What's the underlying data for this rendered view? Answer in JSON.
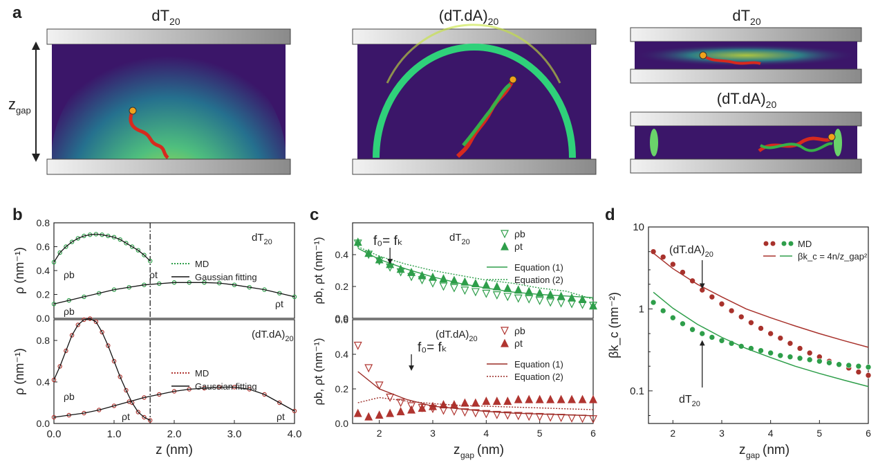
{
  "panel_letters": {
    "a": "a",
    "b": "b",
    "c": "c",
    "d": "d"
  },
  "panel_a": {
    "sim1_title": "dT",
    "sim1_sub": "20",
    "sim2_title": "(dT.dA)",
    "sim2_sub": "20",
    "sim3_title": "dT",
    "sim3_sub": "20",
    "sim4_title": "(dT.dA)",
    "sim4_sub": "20",
    "gap_label": "z",
    "gap_sub": "gap",
    "colors": {
      "plate_light": "#f0f0f0",
      "plate_dark": "#8a8a8a",
      "bg": "#3b1669",
      "ring": "#2fd17a",
      "hot": "#f4ea3a",
      "strand_red": "#d62a1e",
      "strand_green": "#36b049",
      "tether": "#f0a21a"
    }
  },
  "chart_data": [
    {
      "id": "b_top",
      "type": "line",
      "xlim": [
        0,
        4.0
      ],
      "ylim": [
        0,
        0.8
      ],
      "yticks": [
        "0.0",
        "0.2",
        "0.4",
        "0.6",
        "0.8"
      ],
      "ylabel": "ρ (nm⁻¹)",
      "label_main": "dT",
      "label_sub": "20",
      "legend": [
        "MD",
        "Gaussian fitting"
      ],
      "divider_x": 1.6,
      "annotations": [
        "ρb",
        "ρt",
        "ρb",
        "ρt"
      ],
      "series": [
        {
          "name": "MD (z_gap = 1.6 nm)",
          "color": "#2e9e4a",
          "x": [
            0,
            0.1,
            0.2,
            0.3,
            0.4,
            0.5,
            0.6,
            0.7,
            0.8,
            0.9,
            1.0,
            1.1,
            1.2,
            1.3,
            1.4,
            1.5,
            1.6
          ],
          "y": [
            0.47,
            0.55,
            0.6,
            0.64,
            0.67,
            0.69,
            0.7,
            0.705,
            0.7,
            0.69,
            0.68,
            0.66,
            0.63,
            0.6,
            0.57,
            0.53,
            0.48
          ]
        },
        {
          "name": "MD (z_gap = 4.0 nm)",
          "color": "#2e9e4a",
          "x": [
            0,
            0.25,
            0.5,
            0.75,
            1.0,
            1.25,
            1.5,
            1.75,
            2.0,
            2.25,
            2.5,
            2.75,
            3.0,
            3.25,
            3.5,
            3.75,
            4.0
          ],
          "y": [
            0.12,
            0.15,
            0.18,
            0.21,
            0.24,
            0.26,
            0.28,
            0.29,
            0.3,
            0.3,
            0.3,
            0.295,
            0.28,
            0.26,
            0.24,
            0.21,
            0.18
          ]
        }
      ]
    },
    {
      "id": "b_bottom",
      "type": "line",
      "xlim": [
        0,
        4.0
      ],
      "ylim": [
        0,
        1.0
      ],
      "yticks": [
        "0.0",
        "0.4",
        "0.8"
      ],
      "xticks": [
        "0.0",
        "1.0",
        "2.0",
        "3.0",
        "4.0"
      ],
      "xlabel": "z (nm)",
      "ylabel": "ρ (nm⁻¹)",
      "label_main": "(dT.dA)",
      "label_sub": "20",
      "legend": [
        "MD",
        "Gaussian fitting"
      ],
      "divider_x": 1.6,
      "annotations": [
        "ρb",
        "ρt",
        "ρt"
      ],
      "series": [
        {
          "name": "MD (z_gap = 1.6 nm)",
          "color": "#b03530",
          "x": [
            0,
            0.1,
            0.2,
            0.3,
            0.4,
            0.5,
            0.6,
            0.7,
            0.8,
            0.9,
            1.0,
            1.1,
            1.2,
            1.3,
            1.4,
            1.5,
            1.6
          ],
          "y": [
            0.42,
            0.55,
            0.7,
            0.85,
            0.95,
            1.0,
            1.01,
            0.98,
            0.88,
            0.75,
            0.6,
            0.45,
            0.32,
            0.2,
            0.11,
            0.06,
            0.03
          ]
        },
        {
          "name": "MD (z_gap = 4.0 nm)",
          "color": "#b03530",
          "x": [
            0,
            0.25,
            0.5,
            0.75,
            1.0,
            1.25,
            1.5,
            1.75,
            2.0,
            2.25,
            2.5,
            2.75,
            3.0,
            3.25,
            3.5,
            3.75,
            4.0
          ],
          "y": [
            0.06,
            0.08,
            0.1,
            0.13,
            0.17,
            0.21,
            0.25,
            0.28,
            0.31,
            0.33,
            0.34,
            0.35,
            0.35,
            0.33,
            0.28,
            0.2,
            0.12
          ]
        }
      ]
    },
    {
      "id": "c_top",
      "type": "scatter",
      "xlim": [
        1.5,
        6
      ],
      "ylim": [
        0,
        0.6
      ],
      "yticks": [
        "0.0",
        "0.2",
        "0.4"
      ],
      "ylabel": "ρb, ρt (nm⁻¹)",
      "label_main": "dT",
      "label_sub": "20",
      "marker_text": "f₀= fₖ",
      "legend": [
        "ρb",
        "ρt",
        "Equation (1)",
        "Equation (2)"
      ],
      "series": [
        {
          "name": "ρb",
          "marker": "triangle-down",
          "color": "#2e9e4a",
          "x": [
            1.6,
            1.8,
            2.0,
            2.2,
            2.4,
            2.6,
            2.8,
            3.0,
            3.2,
            3.4,
            3.6,
            3.8,
            4.0,
            4.2,
            4.4,
            4.6,
            4.8,
            5.0,
            5.2,
            5.4,
            5.6,
            5.8,
            6.0
          ],
          "y": [
            0.47,
            0.4,
            0.36,
            0.32,
            0.29,
            0.26,
            0.24,
            0.22,
            0.2,
            0.19,
            0.175,
            0.165,
            0.155,
            0.145,
            0.135,
            0.125,
            0.12,
            0.11,
            0.1,
            0.095,
            0.09,
            0.085,
            0.08
          ]
        },
        {
          "name": "ρt",
          "marker": "triangle-up",
          "color": "#2e9e4a",
          "x": [
            1.6,
            1.8,
            2.0,
            2.2,
            2.4,
            2.6,
            2.8,
            3.0,
            3.2,
            3.4,
            3.6,
            3.8,
            4.0,
            4.2,
            4.4,
            4.6,
            4.8,
            5.0,
            5.2,
            5.4,
            5.6,
            5.8,
            6.0
          ],
          "y": [
            0.48,
            0.41,
            0.37,
            0.34,
            0.31,
            0.29,
            0.27,
            0.26,
            0.25,
            0.24,
            0.23,
            0.22,
            0.21,
            0.2,
            0.19,
            0.18,
            0.17,
            0.16,
            0.15,
            0.14,
            0.13,
            0.12,
            0.08
          ]
        },
        {
          "name": "Equation (1)",
          "line": "solid",
          "color": "#2e9e4a",
          "x": [
            1.6,
            2,
            2.5,
            3,
            3.5,
            4,
            4.5,
            5,
            5.5,
            6
          ],
          "y": [
            0.44,
            0.37,
            0.31,
            0.26,
            0.22,
            0.19,
            0.165,
            0.15,
            0.14,
            0.13
          ]
        },
        {
          "name": "Equation (2)",
          "line": "dotted",
          "color": "#2e9e4a",
          "x": [
            1.6,
            2,
            2.5,
            3,
            3.5,
            4,
            4.5,
            5,
            5.5,
            6
          ],
          "y": [
            0.45,
            0.39,
            0.34,
            0.3,
            0.27,
            0.24,
            0.22,
            0.19,
            0.17,
            0.12
          ]
        }
      ]
    },
    {
      "id": "c_bottom",
      "type": "scatter",
      "xlim": [
        1.5,
        6
      ],
      "ylim": [
        0,
        0.6
      ],
      "yticks": [
        "0.0",
        "0.2",
        "0.4",
        "0.6"
      ],
      "xticks": [
        "2",
        "3",
        "4",
        "5",
        "6"
      ],
      "xlabel": "z_gap (nm)",
      "ylabel": "ρb, ρt (nm⁻¹)",
      "label_main": "(dT.dA)",
      "label_sub": "20",
      "marker_text": "f₀= fₖ",
      "legend": [
        "ρb",
        "ρt",
        "Equation (1)",
        "Equation (2)"
      ],
      "series": [
        {
          "name": "ρb",
          "marker": "triangle-down",
          "color": "#b03530",
          "x": [
            1.6,
            1.8,
            2.0,
            2.2,
            2.4,
            2.6,
            2.8,
            3.0,
            3.2,
            3.4,
            3.6,
            3.8,
            4.0,
            4.2,
            4.4,
            4.6,
            4.8,
            5.0,
            5.2,
            5.4,
            5.6,
            5.8,
            6.0
          ],
          "y": [
            0.45,
            0.32,
            0.22,
            0.15,
            0.12,
            0.1,
            0.09,
            0.085,
            0.075,
            0.07,
            0.065,
            0.06,
            0.055,
            0.05,
            0.047,
            0.044,
            0.04,
            0.038,
            0.035,
            0.033,
            0.03,
            0.028,
            0.025
          ]
        },
        {
          "name": "ρt",
          "marker": "triangle-up",
          "color": "#b03530",
          "x": [
            1.6,
            1.8,
            2.0,
            2.2,
            2.4,
            2.6,
            2.8,
            3.0,
            3.2,
            3.4,
            3.6,
            3.8,
            4.0,
            4.2,
            4.4,
            4.6,
            4.8,
            5.0,
            5.2,
            5.4,
            5.6,
            5.8,
            6.0
          ],
          "y": [
            0.06,
            0.04,
            0.05,
            0.06,
            0.07,
            0.08,
            0.09,
            0.1,
            0.11,
            0.11,
            0.12,
            0.12,
            0.13,
            0.13,
            0.13,
            0.14,
            0.14,
            0.14,
            0.14,
            0.14,
            0.14,
            0.14,
            0.14
          ]
        },
        {
          "name": "Equation (1)",
          "line": "solid",
          "color": "#9a2a25",
          "x": [
            1.6,
            2,
            2.5,
            3,
            3.5,
            4,
            4.5,
            5,
            5.5,
            6
          ],
          "y": [
            0.3,
            0.2,
            0.14,
            0.1,
            0.085,
            0.07,
            0.06,
            0.055,
            0.05,
            0.045
          ]
        },
        {
          "name": "Equation (2)",
          "line": "dotted",
          "color": "#9a2a25",
          "x": [
            1.6,
            2,
            2.5,
            3,
            3.5,
            4,
            4.5,
            5,
            5.5,
            6
          ],
          "y": [
            0.12,
            0.15,
            0.13,
            0.115,
            0.105,
            0.1,
            0.095,
            0.09,
            0.085,
            0.08
          ]
        }
      ]
    },
    {
      "id": "d",
      "type": "scatter",
      "yscale": "log",
      "xlim": [
        1.5,
        6
      ],
      "ylim": [
        0.04,
        10
      ],
      "yticks": [
        "0.1",
        "1",
        "10"
      ],
      "xticks": [
        "2",
        "3",
        "4",
        "5",
        "6"
      ],
      "xlabel": "z_gap (nm)",
      "ylabel": "βk_c (nm⁻²)",
      "label1_main": "(dT.dA)",
      "label1_sub": "20",
      "label2_main": "dT",
      "label2_sub": "20",
      "legend": [
        "MD",
        "βk_c = 4n/z_gap²"
      ],
      "series": [
        {
          "name": "MD (dT.dA)20",
          "color": "#a8322c",
          "x": [
            1.6,
            1.8,
            2.0,
            2.2,
            2.4,
            2.6,
            2.8,
            3.0,
            3.2,
            3.4,
            3.6,
            3.8,
            4.0,
            4.2,
            4.4,
            4.6,
            4.8,
            5.0,
            5.2,
            5.4,
            5.6,
            5.8,
            6.0
          ],
          "y": [
            5.0,
            4.3,
            3.5,
            2.8,
            2.2,
            1.7,
            1.4,
            1.15,
            0.95,
            0.8,
            0.68,
            0.58,
            0.5,
            0.44,
            0.38,
            0.33,
            0.29,
            0.26,
            0.23,
            0.21,
            0.19,
            0.17,
            0.155
          ]
        },
        {
          "name": "MD dT20",
          "color": "#2e9e4a",
          "x": [
            1.6,
            1.8,
            2.0,
            2.2,
            2.4,
            2.6,
            2.8,
            3.0,
            3.2,
            3.4,
            3.6,
            3.8,
            4.0,
            4.2,
            4.4,
            4.6,
            4.8,
            5.0,
            5.2,
            5.4,
            5.6,
            5.8,
            6.0
          ],
          "y": [
            1.2,
            0.95,
            0.78,
            0.66,
            0.56,
            0.5,
            0.45,
            0.41,
            0.38,
            0.35,
            0.33,
            0.31,
            0.29,
            0.27,
            0.26,
            0.25,
            0.24,
            0.23,
            0.22,
            0.21,
            0.205,
            0.2,
            0.195
          ]
        },
        {
          "name": "βk_c = 4n/z_gap² (dT.dA)20",
          "line": "solid",
          "color": "#a8322c",
          "x": [
            1.6,
            2,
            2.5,
            3,
            3.5,
            4,
            4.5,
            5,
            5.5,
            6
          ],
          "y": [
            4.8,
            3.1,
            2.0,
            1.4,
            1.0,
            0.78,
            0.62,
            0.5,
            0.41,
            0.34
          ]
        },
        {
          "name": "βk_c = 4n/z_gap² dT20",
          "line": "solid",
          "color": "#2e9e4a",
          "x": [
            1.6,
            2,
            2.5,
            3,
            3.5,
            4,
            4.5,
            5,
            5.5,
            6
          ],
          "y": [
            1.6,
            1.02,
            0.65,
            0.45,
            0.33,
            0.255,
            0.2,
            0.163,
            0.135,
            0.113
          ]
        }
      ]
    }
  ]
}
